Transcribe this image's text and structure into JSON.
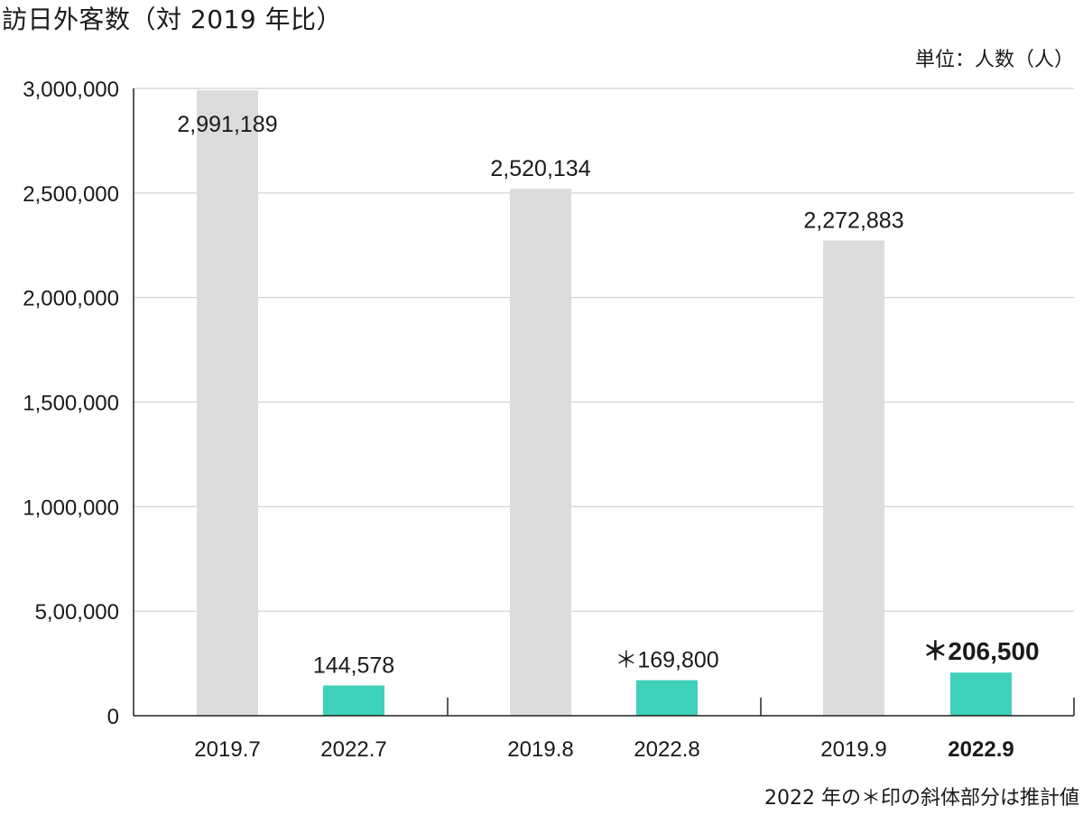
{
  "header": {
    "title": "訪日外客数（対 2019 年比）",
    "unit": "単位：人数（人）"
  },
  "footnote": "2022 年の＊印の斜体部分は推計値",
  "colors": {
    "bar_2019": "#dcdcdc",
    "bar_2022": "#3fd1b9",
    "grid": "#cfcfcf",
    "axis": "#222222"
  },
  "chart_data": {
    "type": "bar",
    "ylim": [
      0,
      3000000
    ],
    "yticks": [
      {
        "value": 0,
        "label": "0"
      },
      {
        "value": 500000,
        "label": "5,00,000"
      },
      {
        "value": 1000000,
        "label": "1,000,000"
      },
      {
        "value": 1500000,
        "label": "1,500,000"
      },
      {
        "value": 2000000,
        "label": "2,000,000"
      },
      {
        "value": 2500000,
        "label": "2,500,000"
      },
      {
        "value": 3000000,
        "label": "3,000,000"
      }
    ],
    "grid": true,
    "categories": [
      "2019.7",
      "2022.7",
      "2019.8",
      "2022.8",
      "2019.9",
      "2022.9"
    ],
    "values": [
      2991189,
      144578,
      2520134,
      169800,
      2272883,
      206500
    ],
    "data_labels": [
      "2,991,189",
      "144,578",
      "2,520,134",
      "＊169,800",
      "2,272,883",
      "＊206,500"
    ],
    "series_of_bar": [
      "2019",
      "2022",
      "2019",
      "2022",
      "2019",
      "2022"
    ],
    "estimated": [
      false,
      false,
      false,
      true,
      false,
      true
    ],
    "highlighted": [
      false,
      false,
      false,
      false,
      false,
      true
    ]
  }
}
